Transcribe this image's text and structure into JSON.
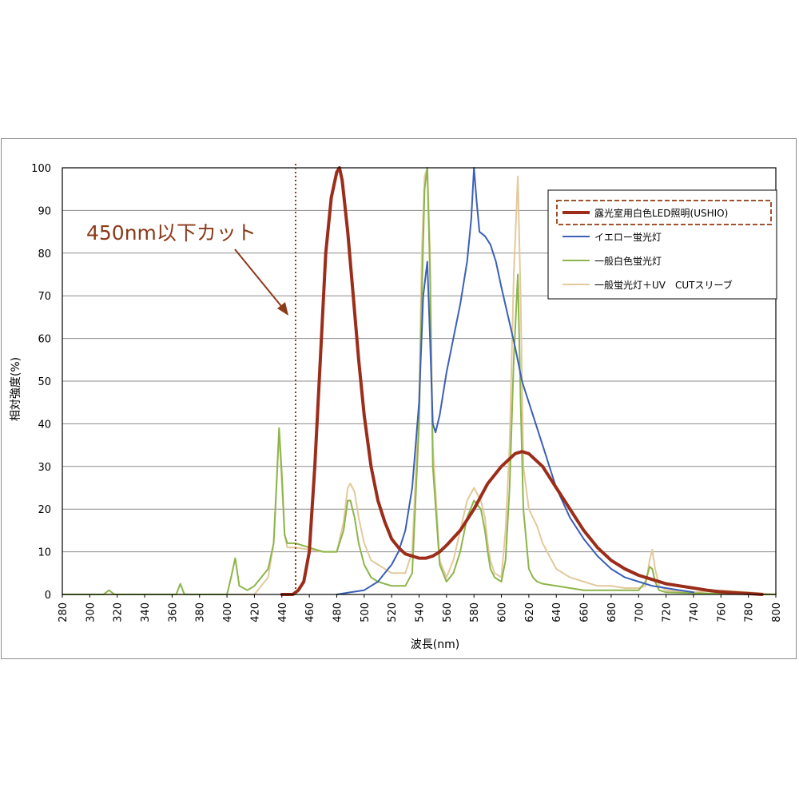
{
  "chart_data": {
    "type": "line",
    "title": "",
    "xlabel": "波長(nm)",
    "ylabel": "相対強度(%)",
    "xlim": [
      280,
      800
    ],
    "ylim": [
      0,
      100
    ],
    "xticks": [
      280,
      300,
      320,
      340,
      360,
      380,
      400,
      420,
      440,
      460,
      480,
      500,
      520,
      540,
      560,
      580,
      600,
      620,
      640,
      660,
      680,
      700,
      720,
      740,
      760,
      780,
      800
    ],
    "yticks": [
      0,
      10,
      20,
      30,
      40,
      50,
      60,
      70,
      80,
      90,
      100
    ],
    "grid": "horizontal",
    "legend_position": "top-right",
    "annotation": {
      "text": "450nm以下カット",
      "cutoff_x": 450,
      "color": "#8b3a1a"
    },
    "series": [
      {
        "name": "露光室用白色LED照明(USHIO)",
        "color": "#9b2d1a",
        "width": 4,
        "highlighted": true,
        "x": [
          440,
          448,
          452,
          456,
          460,
          464,
          468,
          472,
          476,
          480,
          482,
          484,
          488,
          492,
          496,
          500,
          505,
          510,
          515,
          520,
          525,
          530,
          535,
          540,
          545,
          550,
          555,
          560,
          570,
          580,
          590,
          600,
          610,
          615,
          620,
          630,
          640,
          650,
          660,
          670,
          680,
          690,
          700,
          710,
          720,
          730,
          740,
          750,
          760,
          770,
          780,
          790
        ],
        "y": [
          0,
          0,
          1,
          3,
          10,
          30,
          55,
          80,
          93,
          99,
          100,
          97,
          85,
          70,
          55,
          42,
          30,
          22,
          17,
          13,
          11,
          9.5,
          9,
          8.5,
          8.5,
          9,
          10,
          11.5,
          15,
          20,
          26,
          30,
          33,
          33.5,
          33,
          30,
          25,
          20,
          15,
          11,
          8,
          6,
          4.5,
          3.5,
          2.5,
          2,
          1.5,
          1,
          0.6,
          0.4,
          0.2,
          0
        ]
      },
      {
        "name": "イエロー蛍光灯",
        "color": "#3b5fb8",
        "width": 2,
        "highlighted": false,
        "x": [
          480,
          490,
          500,
          505,
          510,
          515,
          520,
          525,
          530,
          535,
          540,
          543,
          546,
          548,
          550,
          552,
          555,
          560,
          565,
          570,
          575,
          578,
          580,
          582,
          584,
          588,
          592,
          596,
          600,
          605,
          610,
          615,
          620,
          625,
          630,
          635,
          640,
          650,
          660,
          670,
          680,
          690,
          700,
          710,
          720,
          730,
          740
        ],
        "y": [
          0,
          0.5,
          1,
          2,
          3,
          5,
          7,
          10,
          15,
          25,
          45,
          70,
          78,
          60,
          40,
          38,
          42,
          52,
          60,
          68,
          78,
          88,
          100,
          92,
          85,
          84,
          82,
          78,
          72,
          65,
          58,
          50,
          45,
          40,
          35,
          30,
          25,
          18,
          13,
          9,
          6,
          4,
          3,
          2,
          1.5,
          1,
          0.5
        ]
      },
      {
        "name": "一般白色蛍光灯",
        "color": "#8db54a",
        "width": 2,
        "highlighted": false,
        "x": [
          280,
          300,
          310,
          314,
          318,
          330,
          340,
          360,
          363,
          366,
          369,
          375,
          390,
          400,
          403,
          406,
          409,
          415,
          420,
          430,
          434,
          436,
          438,
          440,
          442,
          444,
          450,
          460,
          470,
          480,
          485,
          488,
          490,
          493,
          496,
          500,
          505,
          510,
          520,
          530,
          535,
          540,
          542,
          544,
          546,
          548,
          550,
          555,
          560,
          565,
          570,
          575,
          580,
          585,
          588,
          590,
          592,
          595,
          600,
          603,
          606,
          609,
          612,
          614,
          616,
          620,
          623,
          626,
          630,
          640,
          650,
          660,
          670,
          680,
          690,
          700,
          705,
          708,
          710,
          712,
          715,
          720,
          740,
          760,
          780,
          800
        ],
        "y": [
          0,
          0,
          0,
          1,
          0,
          0,
          0,
          0,
          0,
          2.5,
          0,
          0,
          0,
          0,
          4,
          8.5,
          2,
          1,
          2,
          6,
          12,
          25,
          39,
          28,
          14,
          12,
          12,
          11,
          10,
          10,
          15,
          22,
          22,
          18,
          12,
          7,
          4,
          3,
          2,
          2,
          5,
          40,
          70,
          95,
          100,
          75,
          30,
          7,
          3,
          5,
          10,
          18,
          22,
          20,
          15,
          10,
          6,
          4,
          3,
          8,
          25,
          55,
          75,
          45,
          20,
          6,
          4,
          3,
          2.5,
          2,
          1.5,
          1,
          1,
          1,
          1,
          1,
          3,
          6.5,
          6,
          3,
          1,
          0.5,
          0.3,
          0.2,
          0,
          0
        ]
      },
      {
        "name": "一般蛍光灯＋UV　CUTスリーブ",
        "color": "#e3c99c",
        "width": 2,
        "highlighted": false,
        "x": [
          280,
          300,
          320,
          340,
          360,
          380,
          400,
          420,
          430,
          434,
          436,
          438,
          440,
          442,
          444,
          450,
          460,
          470,
          480,
          485,
          488,
          490,
          493,
          496,
          500,
          505,
          510,
          520,
          530,
          535,
          540,
          542,
          544,
          546,
          548,
          550,
          555,
          560,
          565,
          570,
          575,
          580,
          585,
          588,
          590,
          592,
          595,
          600,
          603,
          606,
          609,
          612,
          614,
          616,
          620,
          623,
          626,
          630,
          640,
          650,
          660,
          670,
          680,
          690,
          700,
          705,
          708,
          710,
          712,
          715,
          720,
          740,
          760,
          780,
          800
        ],
        "y": [
          0,
          0,
          0,
          0,
          0,
          0,
          0,
          0,
          4,
          12,
          25,
          38,
          26,
          14,
          11,
          11,
          10.5,
          10,
          10,
          17,
          25,
          26,
          24,
          18,
          12,
          8,
          7,
          5,
          5,
          10,
          45,
          80,
          98,
          100,
          80,
          35,
          8,
          4,
          8,
          15,
          22,
          25,
          22,
          18,
          12,
          8,
          5,
          4,
          15,
          35,
          75,
          98,
          70,
          30,
          20,
          18,
          16,
          12,
          6,
          4,
          3,
          2,
          2,
          1.5,
          1.5,
          2,
          8,
          10.5,
          6,
          2,
          1,
          0.5,
          1,
          0.5,
          0
        ]
      }
    ]
  }
}
